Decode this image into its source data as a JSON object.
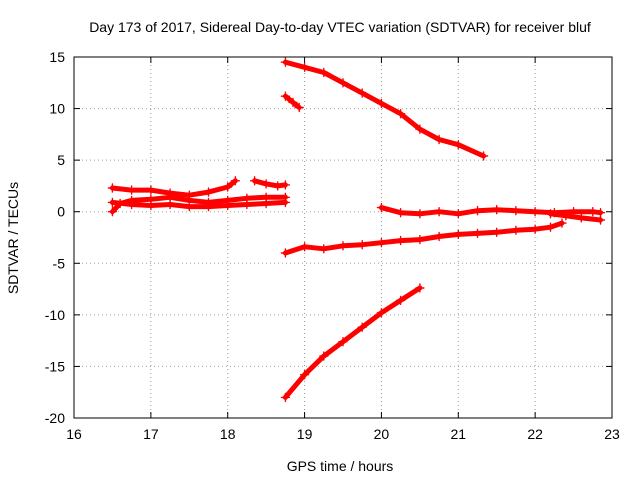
{
  "chart_data": {
    "type": "scatter",
    "title": "Day 173 of 2017, Sidereal Day-to-day VTEC variation (SDTVAR) for receiver bluf",
    "xlabel": "GPS time / hours",
    "ylabel": "SDTVAR / TECUs",
    "xlim": [
      16,
      23
    ],
    "ylim": [
      -20,
      15
    ],
    "xticks": [
      "16",
      "17",
      "18",
      "19",
      "20",
      "21",
      "22",
      "23"
    ],
    "yticks": [
      "15",
      "10",
      "5",
      "0",
      "-5",
      "-10",
      "-15",
      "-20"
    ],
    "grid": true,
    "marker": "plus",
    "color": "#ff0000",
    "series": [
      {
        "points": [
          [
            18.75,
            14.5
          ],
          [
            19.0,
            14.0
          ],
          [
            19.25,
            13.5
          ],
          [
            19.5,
            12.5
          ],
          [
            19.75,
            11.5
          ],
          [
            20.0,
            10.5
          ],
          [
            20.25,
            9.5
          ],
          [
            20.5,
            8.0
          ],
          [
            20.75,
            7.0
          ],
          [
            21.0,
            6.5
          ],
          [
            21.33,
            5.4
          ]
        ]
      },
      {
        "points": [
          [
            18.75,
            11.2
          ],
          [
            18.85,
            10.6
          ],
          [
            18.93,
            10.1
          ]
        ]
      },
      {
        "points": [
          [
            16.5,
            2.3
          ],
          [
            16.75,
            2.1
          ],
          [
            17.0,
            2.1
          ],
          [
            17.25,
            1.8
          ],
          [
            17.5,
            1.6
          ],
          [
            17.75,
            1.9
          ],
          [
            18.0,
            2.4
          ],
          [
            18.1,
            3.0
          ]
        ]
      },
      {
        "points": [
          [
            16.5,
            0.0
          ],
          [
            16.6,
            0.8
          ],
          [
            16.75,
            1.1
          ],
          [
            17.0,
            1.2
          ],
          [
            17.25,
            1.4
          ],
          [
            17.5,
            1.1
          ],
          [
            17.75,
            0.9
          ],
          [
            18.0,
            1.1
          ],
          [
            18.25,
            1.3
          ],
          [
            18.5,
            1.4
          ],
          [
            18.75,
            1.4
          ]
        ]
      },
      {
        "points": [
          [
            16.5,
            0.9
          ],
          [
            16.75,
            0.7
          ],
          [
            17.0,
            0.6
          ],
          [
            17.25,
            0.7
          ],
          [
            17.5,
            0.5
          ],
          [
            17.75,
            0.5
          ],
          [
            18.0,
            0.6
          ],
          [
            18.25,
            0.7
          ],
          [
            18.5,
            0.8
          ],
          [
            18.75,
            0.9
          ]
        ]
      },
      {
        "points": [
          [
            18.35,
            3.0
          ],
          [
            18.5,
            2.7
          ],
          [
            18.65,
            2.5
          ],
          [
            18.75,
            2.6
          ]
        ]
      },
      {
        "points": [
          [
            20.0,
            0.4
          ],
          [
            20.25,
            -0.1
          ],
          [
            20.5,
            -0.2
          ],
          [
            20.75,
            0.0
          ],
          [
            21.0,
            -0.2
          ],
          [
            21.25,
            0.1
          ],
          [
            21.5,
            0.2
          ],
          [
            21.75,
            0.1
          ],
          [
            22.0,
            0.0
          ],
          [
            22.25,
            -0.1
          ],
          [
            22.5,
            0.0
          ],
          [
            22.75,
            0.0
          ],
          [
            22.85,
            -0.1
          ]
        ]
      },
      {
        "points": [
          [
            22.2,
            -0.2
          ],
          [
            22.4,
            -0.4
          ],
          [
            22.6,
            -0.6
          ],
          [
            22.85,
            -0.8
          ]
        ]
      },
      {
        "points": [
          [
            18.75,
            -4.0
          ],
          [
            19.0,
            -3.4
          ],
          [
            19.25,
            -3.6
          ],
          [
            19.5,
            -3.3
          ],
          [
            19.75,
            -3.2
          ],
          [
            20.0,
            -3.0
          ],
          [
            20.25,
            -2.8
          ],
          [
            20.5,
            -2.7
          ],
          [
            20.75,
            -2.4
          ],
          [
            21.0,
            -2.2
          ],
          [
            21.25,
            -2.1
          ],
          [
            21.5,
            -2.0
          ],
          [
            21.75,
            -1.8
          ],
          [
            22.0,
            -1.7
          ],
          [
            22.2,
            -1.5
          ],
          [
            22.35,
            -1.1
          ]
        ]
      },
      {
        "points": [
          [
            18.75,
            -18.0
          ],
          [
            19.0,
            -15.8
          ],
          [
            19.25,
            -14.0
          ],
          [
            19.5,
            -12.6
          ],
          [
            19.75,
            -11.2
          ],
          [
            20.0,
            -9.8
          ],
          [
            20.25,
            -8.6
          ],
          [
            20.5,
            -7.4
          ]
        ]
      }
    ]
  }
}
